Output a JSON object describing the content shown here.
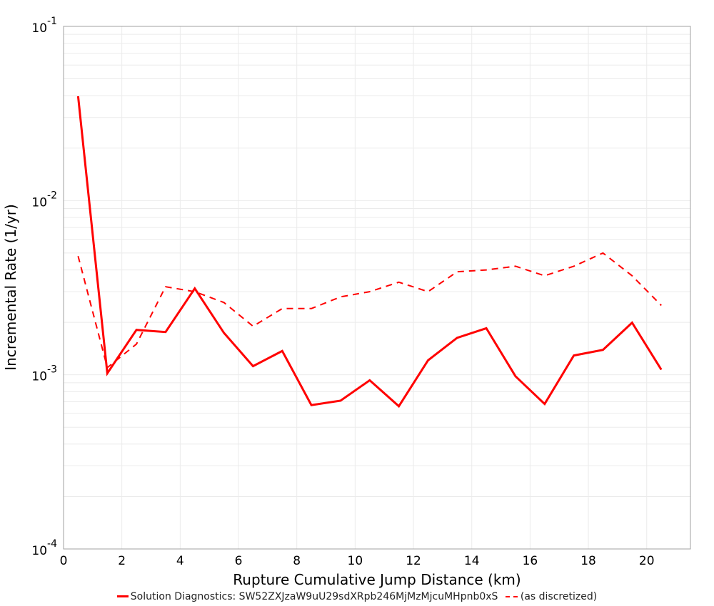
{
  "chart_data": {
    "type": "line",
    "title": "",
    "xlabel": "Rupture Cumulative Jump Distance (km)",
    "ylabel": "Incremental Rate (1/yr)",
    "xlim": [
      0,
      21.5
    ],
    "ylim": [
      0.0001,
      0.1
    ],
    "yscale": "log",
    "grid": true,
    "legend_position": "bottom",
    "x_ticks": [
      0,
      2,
      4,
      6,
      8,
      10,
      12,
      14,
      16,
      18,
      20
    ],
    "y_ticks": [
      {
        "base": "10",
        "exp": "-1",
        "value": 0.1
      },
      {
        "base": "10",
        "exp": "-2",
        "value": 0.01
      },
      {
        "base": "10",
        "exp": "-3",
        "value": 0.001
      },
      {
        "base": "10",
        "exp": "-4",
        "value": 0.0001
      }
    ],
    "x": [
      0.5,
      1.5,
      2.5,
      3.5,
      4.5,
      5.5,
      6.5,
      7.5,
      8.5,
      9.5,
      10.5,
      11.5,
      12.5,
      13.5,
      14.5,
      15.5,
      16.5,
      17.5,
      18.5,
      19.5,
      20.5
    ],
    "series": [
      {
        "name": "Solution Diagnostics: SW52ZXJzaW9uU29sdXRpb246MjMzMjcuMHpnb0xS",
        "color": "#ff0000",
        "style": "solid",
        "values": [
          0.0397,
          0.00102,
          0.00181,
          0.00176,
          0.00313,
          0.00174,
          0.00112,
          0.00137,
          0.00067,
          0.00071,
          0.00093,
          0.00066,
          0.00121,
          0.00163,
          0.00185,
          0.00098,
          0.00068,
          0.00129,
          0.00139,
          0.00199,
          0.00107
        ]
      },
      {
        "name": "(as discretized)",
        "color": "#ff0000",
        "style": "dashed",
        "values": [
          0.0048,
          0.0011,
          0.0015,
          0.0032,
          0.003,
          0.0026,
          0.0019,
          0.0024,
          0.0024,
          0.0028,
          0.003,
          0.0034,
          0.003,
          0.0039,
          0.004,
          0.0042,
          0.0037,
          0.0042,
          0.005,
          0.0037,
          0.0025
        ]
      }
    ]
  },
  "legend": {
    "items": [
      {
        "label": "Solution Diagnostics: SW52ZXJzaW9uU29sdXRpb246MjMzMjcuMHpnb0xS",
        "style": "solid"
      },
      {
        "label": "(as discretized)",
        "style": "dashed"
      }
    ]
  },
  "colors": {
    "series": "#ff0000",
    "grid": "#ebebeb",
    "axis": "#a0a0a0"
  }
}
